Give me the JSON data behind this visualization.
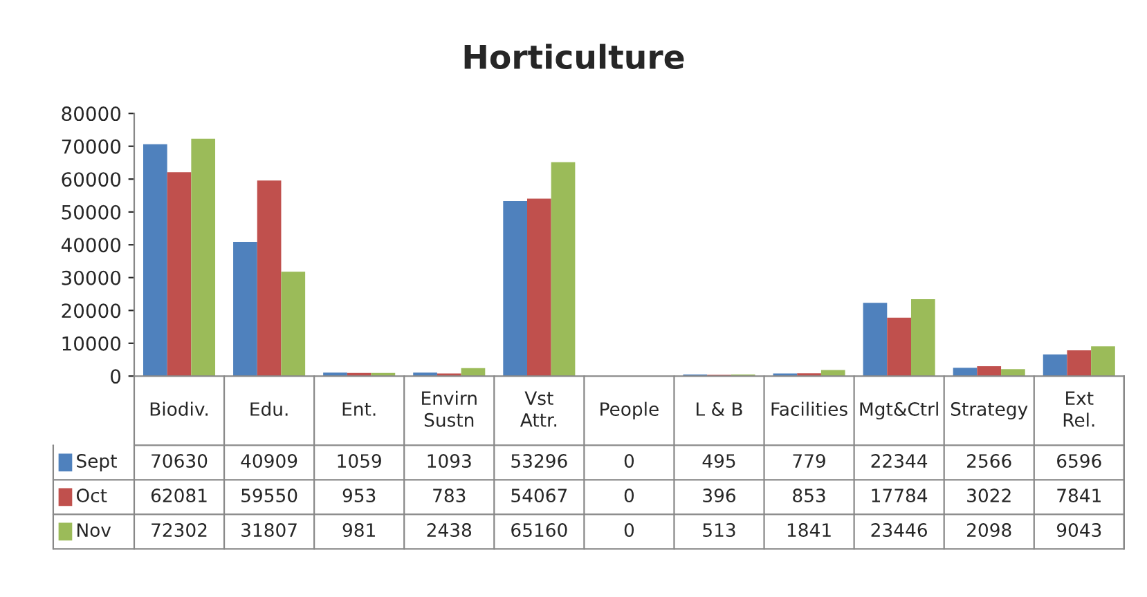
{
  "chart_data": {
    "type": "bar",
    "title": "Horticulture",
    "categories": [
      "Biodiv.",
      "Edu.",
      "Ent.",
      "Envirn Sustn",
      "Vst Attr.",
      "People",
      "L & B",
      "Facilities",
      "Mgt&Ctrl",
      "Strategy",
      "Ext Rel."
    ],
    "series": [
      {
        "name": "Sept",
        "color": "#4f81bd",
        "values": [
          70630,
          40909,
          1059,
          1093,
          53296,
          0,
          495,
          779,
          22344,
          2566,
          6596
        ]
      },
      {
        "name": "Oct",
        "color": "#c0504d",
        "values": [
          62081,
          59550,
          953,
          783,
          54067,
          0,
          396,
          853,
          17784,
          3022,
          7841
        ]
      },
      {
        "name": "Nov",
        "color": "#9bbb59",
        "values": [
          72302,
          31807,
          981,
          2438,
          65160,
          0,
          513,
          1841,
          23446,
          2098,
          9043
        ]
      }
    ],
    "ylim": [
      0,
      80000
    ],
    "yticks": [
      0,
      10000,
      20000,
      30000,
      40000,
      50000,
      60000,
      70000,
      80000
    ],
    "data_labels": true,
    "grid": false,
    "legend": "bottom left"
  }
}
